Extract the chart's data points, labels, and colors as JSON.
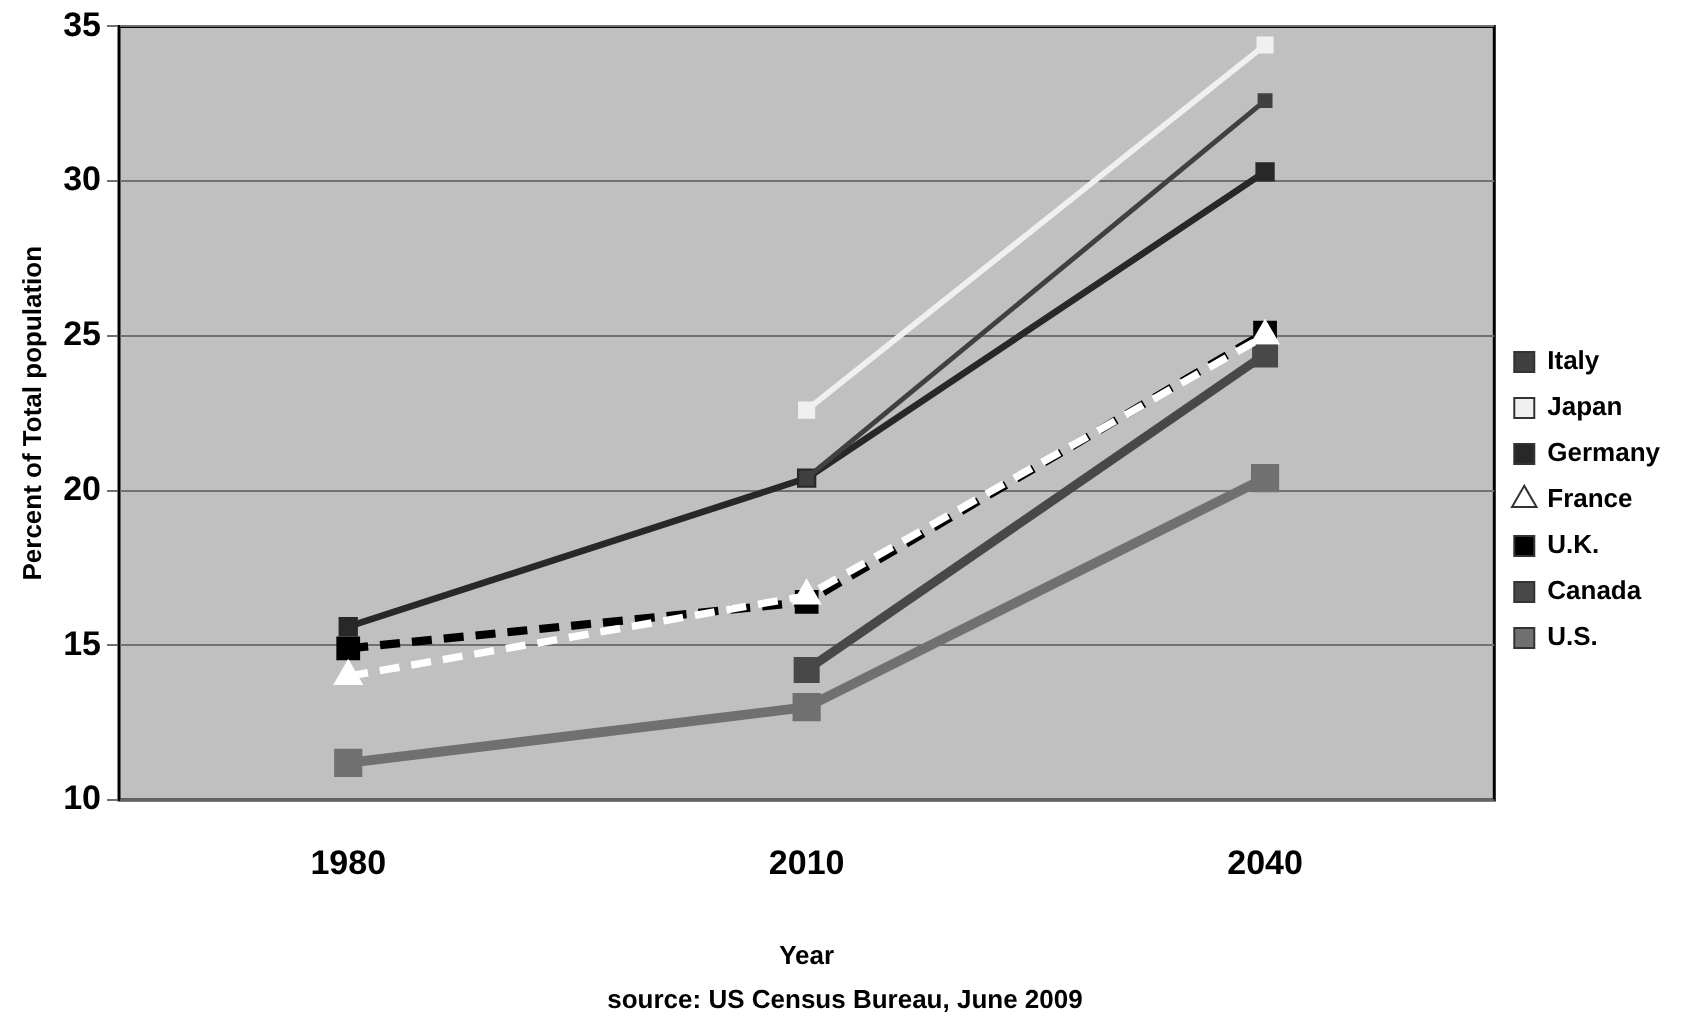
{
  "chart_data": {
    "type": "line",
    "xlabel": "Year",
    "ylabel": "Percent of Total population",
    "annotations": [
      "source: US Census Bureau, June 2009"
    ],
    "categories": [
      "1980",
      "2010",
      "2040"
    ],
    "series": [
      {
        "name": "Italy",
        "color": "#404040",
        "values": [
          null,
          20.4,
          32.6
        ],
        "marker": "square"
      },
      {
        "name": "Japan",
        "color": "#f0f0f0",
        "values": [
          null,
          22.6,
          34.4
        ],
        "marker": "square"
      },
      {
        "name": "Germany",
        "color": "#282828",
        "values": [
          15.6,
          20.4,
          30.3
        ],
        "marker": "square"
      },
      {
        "name": "France",
        "color": "#ffffff",
        "values": [
          14.0,
          16.6,
          25.0
        ],
        "marker": "triangle",
        "line_style": "dashed"
      },
      {
        "name": "U.K.",
        "color": "#000000",
        "values": [
          14.9,
          16.4,
          25.1
        ],
        "marker": "square",
        "line_style": "dashed"
      },
      {
        "name": "Canada",
        "color": "#484848",
        "values": [
          null,
          14.2,
          24.4
        ],
        "marker": "square"
      },
      {
        "name": "U.S.",
        "color": "#707070",
        "values": [
          11.2,
          13.0,
          20.4
        ],
        "marker": "square"
      }
    ],
    "ylim": [
      10,
      35
    ],
    "yticks": [
      10,
      15,
      20,
      25,
      30,
      35
    ],
    "grid": "y",
    "legend": "right"
  }
}
